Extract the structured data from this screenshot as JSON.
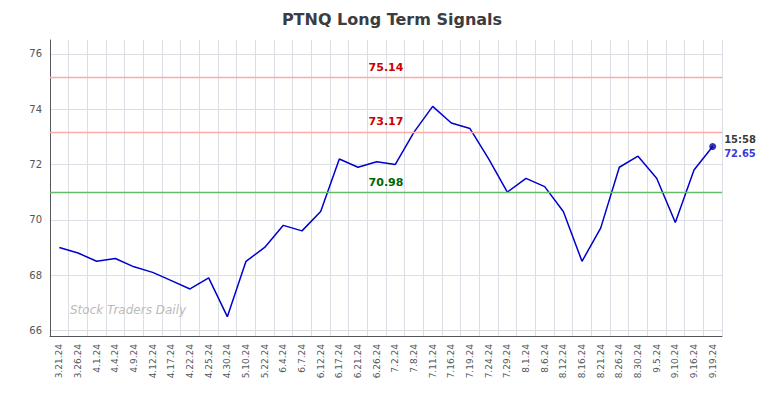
{
  "chart_data": {
    "type": "line",
    "title": "PTNQ Long Term Signals",
    "categories": [
      "3.21.24",
      "3.26.24",
      "4.1.24",
      "4.4.24",
      "4.9.24",
      "4.12.24",
      "4.17.24",
      "4.22.24",
      "4.25.24",
      "4.30.24",
      "5.10.24",
      "5.22.24",
      "6.4.24",
      "6.7.24",
      "6.12.24",
      "6.17.24",
      "6.21.24",
      "6.26.24",
      "7.2.24",
      "7.8.24",
      "7.11.24",
      "7.16.24",
      "7.19.24",
      "7.24.24",
      "7.29.24",
      "8.1.24",
      "8.6.24",
      "8.12.24",
      "8.16.24",
      "8.21.24",
      "8.26.24",
      "8.30.24",
      "9.5.24",
      "9.10.24",
      "9.16.24",
      "9.19.24"
    ],
    "values": [
      69.0,
      68.8,
      68.5,
      68.6,
      68.3,
      68.1,
      67.8,
      67.5,
      67.9,
      66.5,
      68.5,
      69.0,
      69.8,
      69.6,
      70.3,
      72.2,
      71.9,
      72.1,
      72.0,
      73.17,
      74.1,
      73.5,
      73.3,
      72.2,
      71.0,
      71.5,
      71.2,
      70.3,
      68.5,
      69.7,
      71.9,
      72.3,
      71.5,
      69.9,
      71.8,
      72.65
    ],
    "color": "#0000cc",
    "ylim": [
      65.8,
      76.5
    ],
    "yticks": [
      66,
      68,
      70,
      72,
      74,
      76
    ],
    "grid": true,
    "reference_lines": [
      {
        "value": 75.14,
        "label": "75.14",
        "color": "#ffaaaa",
        "label_color": "#cc0000"
      },
      {
        "value": 73.17,
        "label": "73.17",
        "color": "#ffaaaa",
        "label_color": "#cc0000"
      },
      {
        "value": 70.98,
        "label": "70.98",
        "color": "#66bb66",
        "label_color": "#006600"
      }
    ],
    "last_point": {
      "color": "#000099",
      "time_label": "15:58",
      "value_label": "72.65"
    },
    "watermark": {
      "text": "Stock Traders Daily",
      "color": "#bbbbbb"
    }
  }
}
